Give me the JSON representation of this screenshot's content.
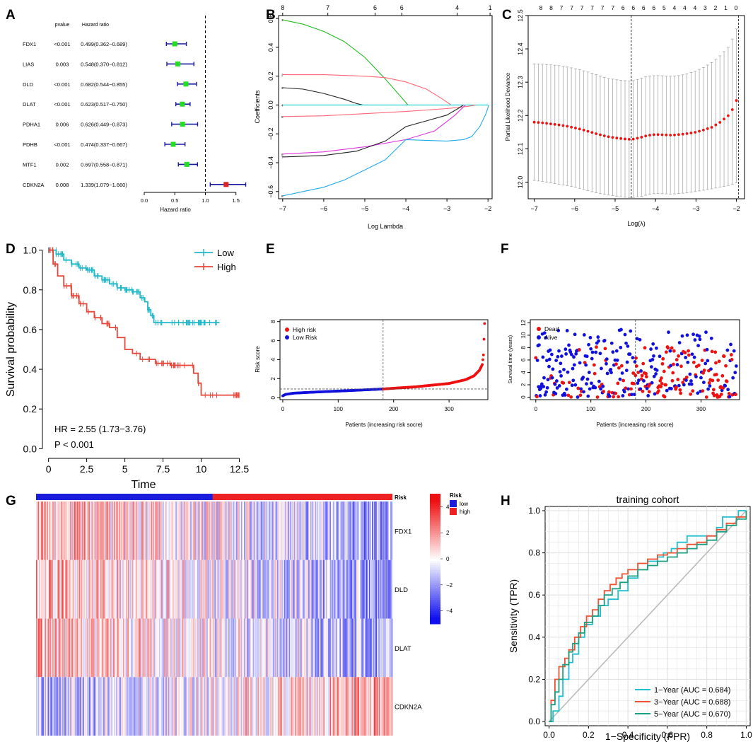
{
  "panel_labels": [
    "A",
    "B",
    "C",
    "D",
    "E",
    "F",
    "G",
    "H"
  ],
  "chart_data": [
    {
      "id": "A",
      "type": "forest",
      "xlabel": "Hazard ratio",
      "xlim": [
        0,
        1.7
      ],
      "xticks": [
        0.0,
        0.5,
        1.0,
        1.5
      ],
      "xtick_labels": [
        "0.0",
        "0.5",
        "1.0",
        "1.5"
      ],
      "reference_line": 1.0,
      "headers": {
        "pvalue": "pvalue",
        "hr": "Hazard ratio"
      },
      "rows": [
        {
          "gene": "FDX1",
          "pvalue": "<0.001",
          "hr_text": "0.499(0.362−0.689)",
          "hr": 0.499,
          "lo": 0.362,
          "hi": 0.689,
          "color": "#22dd22"
        },
        {
          "gene": "LIAS",
          "pvalue": "0.003",
          "hr_text": "0.548(0.370−0.812)",
          "hr": 0.548,
          "lo": 0.37,
          "hi": 0.812,
          "color": "#22dd22"
        },
        {
          "gene": "DLD",
          "pvalue": "<0.001",
          "hr_text": "0.682(0.544−0.855)",
          "hr": 0.682,
          "lo": 0.544,
          "hi": 0.855,
          "color": "#22dd22"
        },
        {
          "gene": "DLAT",
          "pvalue": "<0.001",
          "hr_text": "0.623(0.517−0.750)",
          "hr": 0.623,
          "lo": 0.517,
          "hi": 0.75,
          "color": "#22dd22"
        },
        {
          "gene": "PDHA1",
          "pvalue": "0.006",
          "hr_text": "0.626(0.449−0.873)",
          "hr": 0.626,
          "lo": 0.449,
          "hi": 0.873,
          "color": "#22dd22"
        },
        {
          "gene": "PDHB",
          "pvalue": "<0.001",
          "hr_text": "0.474(0.337−0.667)",
          "hr": 0.474,
          "lo": 0.337,
          "hi": 0.667,
          "color": "#22dd22"
        },
        {
          "gene": "MTF1",
          "pvalue": "0.002",
          "hr_text": "0.697(0.558−0.871)",
          "hr": 0.697,
          "lo": 0.558,
          "hi": 0.871,
          "color": "#22dd22"
        },
        {
          "gene": "CDKN2A",
          "pvalue": "0.008",
          "hr_text": "1.339(1.079−1.660)",
          "hr": 1.339,
          "lo": 1.079,
          "hi": 1.66,
          "color": "#dd2222"
        }
      ]
    },
    {
      "id": "B",
      "type": "line",
      "xlabel": "Log Lambda",
      "ylabel": "Coefficients",
      "xlim": [
        -7.1,
        -1.9
      ],
      "ylim": [
        -0.65,
        0.62
      ],
      "xticks": [
        -7,
        -6,
        -5,
        -4,
        -3,
        -2
      ],
      "yticks": [
        -0.6,
        -0.4,
        -0.2,
        0.0,
        0.2,
        0.4,
        0.6
      ],
      "top_axis": {
        "values": [
          -7,
          -5.9,
          -4.75,
          -4.1,
          -2.75,
          -1.95
        ],
        "labels": [
          "8",
          "7",
          "6",
          "6",
          "4",
          "1"
        ]
      },
      "series": [
        {
          "name": "1",
          "color": "#22bb22",
          "x": [
            -7,
            -6.5,
            -6,
            -5.5,
            -5,
            -4.5,
            -4.1,
            -3.95
          ],
          "y": [
            0.59,
            0.56,
            0.51,
            0.44,
            0.33,
            0.18,
            0.05,
            0.0
          ]
        },
        {
          "name": "2",
          "color": "#ff6677",
          "x": [
            -7,
            -6,
            -5,
            -4.5,
            -4,
            -3.5,
            -3.1,
            -2.9
          ],
          "y": [
            0.21,
            0.21,
            0.2,
            0.19,
            0.16,
            0.11,
            0.04,
            0.0
          ]
        },
        {
          "name": "3",
          "color": "#222222",
          "x": [
            -7,
            -6.5,
            -6,
            -5.5,
            -5.2,
            -5.05
          ],
          "y": [
            0.12,
            0.11,
            0.08,
            0.04,
            0.01,
            0.0
          ]
        },
        {
          "name": "4",
          "color": "#00cccc",
          "x": [
            -7,
            -2
          ],
          "y": [
            0.0,
            0.0
          ]
        },
        {
          "name": "5",
          "color": "#ff6677",
          "x": [
            -7,
            -6,
            -5,
            -4,
            -3,
            -2.5,
            -2.3
          ],
          "y": [
            -0.08,
            -0.075,
            -0.06,
            -0.045,
            -0.025,
            -0.01,
            0.0
          ]
        },
        {
          "name": "6",
          "color": "#dd33dd",
          "x": [
            -7,
            -6,
            -5,
            -4,
            -3.3,
            -2.8,
            -2.55
          ],
          "y": [
            -0.34,
            -0.325,
            -0.29,
            -0.24,
            -0.18,
            -0.07,
            0.0
          ]
        },
        {
          "name": "7",
          "color": "#222222",
          "x": [
            -7,
            -6,
            -5.2,
            -4.5,
            -4,
            -3.5,
            -3,
            -2.7,
            -2.6
          ],
          "y": [
            -0.36,
            -0.35,
            -0.32,
            -0.25,
            -0.15,
            -0.11,
            -0.07,
            -0.02,
            0.0
          ]
        },
        {
          "name": "8",
          "color": "#22aaee",
          "x": [
            -7,
            -6.5,
            -6,
            -5.5,
            -5,
            -4.5,
            -4,
            -3.5,
            -3,
            -2.6,
            -2.4,
            -2.2,
            -2.05,
            -1.98
          ],
          "y": [
            -0.63,
            -0.6,
            -0.57,
            -0.52,
            -0.45,
            -0.38,
            -0.24,
            -0.245,
            -0.25,
            -0.24,
            -0.22,
            -0.15,
            -0.06,
            0.0
          ]
        }
      ]
    },
    {
      "id": "C",
      "type": "errorbar",
      "xlabel": "Log(λ)",
      "ylabel": "Partial Likelihood Deviance",
      "xlim": [
        -7.15,
        -1.8
      ],
      "ylim": [
        11.95,
        12.5
      ],
      "xticks": [
        -7,
        -6,
        -5,
        -4,
        -3,
        -2
      ],
      "yticks": [
        12.0,
        12.1,
        12.2,
        12.3,
        12.4,
        12.5
      ],
      "top_labels": [
        "8",
        "8",
        "7",
        "7",
        "7",
        "7",
        "7",
        "7",
        "6",
        "6",
        "6",
        "6",
        "5",
        "4",
        "4",
        "4",
        "3",
        "2",
        "1",
        "0"
      ],
      "vlines": [
        -4.6,
        -1.95
      ],
      "x": [
        -7,
        -6.8,
        -6.6,
        -6.4,
        -6.2,
        -6,
        -5.8,
        -5.6,
        -5.4,
        -5.2,
        -5,
        -4.8,
        -4.6,
        -4.4,
        -4.2,
        -4,
        -3.8,
        -3.6,
        -3.4,
        -3.2,
        -3,
        -2.8,
        -2.6,
        -2.4,
        -2.2,
        -2.1,
        -2.0,
        -1.95
      ],
      "mean": [
        12.18,
        12.178,
        12.175,
        12.172,
        12.168,
        12.163,
        12.157,
        12.15,
        12.143,
        12.137,
        12.133,
        12.13,
        12.128,
        12.133,
        12.14,
        12.143,
        12.142,
        12.141,
        12.143,
        12.146,
        12.15,
        12.157,
        12.165,
        12.18,
        12.2,
        12.218,
        12.245,
        12.28
      ],
      "lower": [
        12.005,
        12.002,
        11.998,
        11.994,
        11.99,
        11.985,
        11.979,
        11.972,
        11.966,
        11.962,
        11.958,
        11.955,
        11.953,
        11.956,
        11.962,
        11.966,
        11.965,
        11.964,
        11.966,
        11.968,
        11.972,
        11.976,
        11.98,
        11.985,
        11.99,
        11.994,
        11.998,
        12.0
      ],
      "upper": [
        12.355,
        12.354,
        12.352,
        12.35,
        12.346,
        12.341,
        12.335,
        12.328,
        12.32,
        12.312,
        12.308,
        12.305,
        12.303,
        12.31,
        12.318,
        12.32,
        12.319,
        12.318,
        12.32,
        12.326,
        12.334,
        12.345,
        12.36,
        12.38,
        12.405,
        12.43,
        12.46,
        12.49
      ]
    },
    {
      "id": "D",
      "type": "survival",
      "xlabel": "Time",
      "ylabel": "Survival probability",
      "xlim": [
        -0.4,
        12.8
      ],
      "ylim": [
        -0.02,
        1.02
      ],
      "xticks": [
        0,
        2.5,
        5,
        7.5,
        10,
        12.5
      ],
      "xtick_labels": [
        "0",
        "2.5",
        "5",
        "7.5",
        "10",
        "12.5"
      ],
      "yticks": [
        0,
        0.2,
        0.4,
        0.6,
        0.8,
        1.0
      ],
      "ytick_labels": [
        "0.0",
        "0.2",
        "0.4",
        "0.6",
        "0.8",
        "1.0"
      ],
      "legend": [
        "Low",
        "High"
      ],
      "annotation": [
        "HR = 2.55 (1.73−3.76)",
        "P < 0.001"
      ],
      "series": [
        {
          "name": "Low",
          "color": "#1fb8c8",
          "x": [
            0,
            0.5,
            1,
            1.5,
            2,
            2.5,
            3,
            3.5,
            4,
            4.5,
            5,
            5.5,
            6,
            6.3,
            6.5,
            6.7,
            6.9,
            11.2
          ],
          "y": [
            1.0,
            0.98,
            0.95,
            0.93,
            0.91,
            0.9,
            0.87,
            0.85,
            0.83,
            0.81,
            0.8,
            0.79,
            0.76,
            0.74,
            0.7,
            0.67,
            0.635,
            0.635
          ]
        },
        {
          "name": "High",
          "color": "#e8463a",
          "x": [
            0,
            0.3,
            0.6,
            1,
            1.5,
            2,
            2.5,
            3,
            3.5,
            4,
            4.5,
            5,
            5.5,
            6,
            7,
            8,
            9.5,
            9.8,
            10,
            12.5
          ],
          "y": [
            1.0,
            0.93,
            0.87,
            0.82,
            0.77,
            0.73,
            0.69,
            0.66,
            0.63,
            0.61,
            0.56,
            0.5,
            0.48,
            0.45,
            0.43,
            0.42,
            0.38,
            0.33,
            0.27,
            0.27
          ]
        }
      ]
    },
    {
      "id": "E",
      "type": "scatter",
      "xlabel": "Patients (increasing risk socre)",
      "ylabel": "Risk score",
      "xlim": [
        -5,
        370
      ],
      "ylim": [
        -0.2,
        8.2
      ],
      "xticks": [
        0,
        100,
        200,
        300
      ],
      "yticks": [
        0,
        2,
        4,
        6,
        8
      ],
      "legend": [
        "High risk",
        "Low Risk"
      ],
      "colors": {
        "high": "#ee1111",
        "low": "#1111dd"
      },
      "cutoff_x": 181,
      "cutoff_y": 0.92,
      "n_patients": 365,
      "curve": {
        "index": [
          0,
          5,
          20,
          60,
          120,
          181,
          240,
          300,
          330,
          345,
          355,
          360,
          362,
          364
        ],
        "score": [
          0.2,
          0.35,
          0.48,
          0.6,
          0.75,
          0.92,
          1.15,
          1.5,
          1.9,
          2.3,
          2.9,
          3.5,
          4.5,
          7.8
        ]
      }
    },
    {
      "id": "F",
      "type": "scatter",
      "xlabel": "Patients (increasing risk socre)",
      "ylabel": "Survival time (years)",
      "xlim": [
        -10,
        370
      ],
      "ylim": [
        -0.4,
        12.5
      ],
      "xticks": [
        0,
        100,
        200,
        300
      ],
      "yticks": [
        0,
        2,
        4,
        6,
        8,
        10,
        12
      ],
      "legend": [
        "Dead",
        "Alive"
      ],
      "colors": {
        "dead": "#ee1111",
        "alive": "#1111dd"
      },
      "cutoff_x": 181,
      "n_patients": 365
    },
    {
      "id": "G",
      "type": "heatmap",
      "rows": [
        "FDX1",
        "DLD",
        "DLAT",
        "CDKN2A"
      ],
      "annotation_title": "Risk",
      "annotation_levels": [
        {
          "name": "low",
          "color": "#1c1cdd"
        },
        {
          "name": "high",
          "color": "#ee2222"
        }
      ],
      "scale_title": "Risk",
      "scale_ticks": [
        4,
        2,
        0,
        -2,
        -4
      ],
      "scale_tick_labels": [
        "4",
        "2",
        "0",
        "−2",
        "−4"
      ],
      "scale_range": [
        -5,
        5
      ],
      "n_columns": 365,
      "low_count": 181,
      "low_color": "#1111ee",
      "mid_color": "#ffffff",
      "high_color": "#ee1111"
    },
    {
      "id": "H",
      "type": "roc",
      "title": "training cohort",
      "xlabel": "1−Specificity (FPR)",
      "ylabel": "Sensitivity (TPR)",
      "xlim": [
        -0.02,
        1.02
      ],
      "ylim": [
        -0.02,
        1.02
      ],
      "xticks": [
        0,
        0.2,
        0.4,
        0.6,
        0.8,
        1.0
      ],
      "xtick_labels": [
        "0.0",
        "0.2",
        "0.4",
        "0.6",
        "0.8",
        "1.0"
      ],
      "yticks": [
        0,
        0.2,
        0.4,
        0.6,
        0.8,
        1.0
      ],
      "ytick_labels": [
        "0.0",
        "0.2",
        "0.4",
        "0.6",
        "0.8",
        "1.0"
      ],
      "series": [
        {
          "name": "1−Year (AUC = 0.684)",
          "color": "#1fbfcf",
          "fpr": [
            0,
            0.02,
            0.02,
            0.05,
            0.07,
            0.1,
            0.12,
            0.15,
            0.18,
            0.22,
            0.26,
            0.3,
            0.35,
            0.4,
            0.45,
            0.5,
            0.55,
            0.58,
            0.62,
            0.65,
            0.7,
            0.75,
            0.8,
            0.85,
            0.88,
            0.92,
            0.96,
            1.0
          ],
          "tpr": [
            0,
            0,
            0.05,
            0.12,
            0.2,
            0.28,
            0.32,
            0.4,
            0.46,
            0.5,
            0.55,
            0.58,
            0.62,
            0.68,
            0.72,
            0.76,
            0.78,
            0.8,
            0.82,
            0.85,
            0.88,
            0.88,
            0.88,
            0.92,
            0.97,
            0.97,
            1.0,
            1.0
          ]
        },
        {
          "name": "3−Year (AUC = 0.688)",
          "color": "#f05030",
          "fpr": [
            0,
            0.01,
            0.03,
            0.05,
            0.08,
            0.1,
            0.13,
            0.16,
            0.19,
            0.22,
            0.25,
            0.28,
            0.31,
            0.34,
            0.37,
            0.4,
            0.45,
            0.5,
            0.55,
            0.6,
            0.65,
            0.7,
            0.75,
            0.8,
            0.85,
            0.9,
            0.95,
            1.0
          ],
          "tpr": [
            0,
            0.1,
            0.2,
            0.26,
            0.3,
            0.34,
            0.4,
            0.45,
            0.5,
            0.53,
            0.58,
            0.62,
            0.65,
            0.68,
            0.7,
            0.72,
            0.75,
            0.77,
            0.79,
            0.8,
            0.82,
            0.84,
            0.85,
            0.88,
            0.91,
            0.94,
            0.97,
            1.0
          ]
        },
        {
          "name": "5−Year (AUC = 0.670)",
          "color": "#1aa080",
          "fpr": [
            0,
            0.01,
            0.03,
            0.05,
            0.07,
            0.1,
            0.12,
            0.15,
            0.18,
            0.22,
            0.25,
            0.28,
            0.32,
            0.36,
            0.4,
            0.45,
            0.5,
            0.55,
            0.6,
            0.65,
            0.7,
            0.75,
            0.8,
            0.85,
            0.9,
            0.95,
            1.0
          ],
          "tpr": [
            0,
            0.08,
            0.14,
            0.2,
            0.27,
            0.33,
            0.37,
            0.42,
            0.47,
            0.5,
            0.55,
            0.6,
            0.63,
            0.66,
            0.69,
            0.72,
            0.74,
            0.76,
            0.78,
            0.8,
            0.82,
            0.84,
            0.86,
            0.9,
            0.93,
            0.96,
            1.0
          ]
        }
      ]
    }
  ]
}
